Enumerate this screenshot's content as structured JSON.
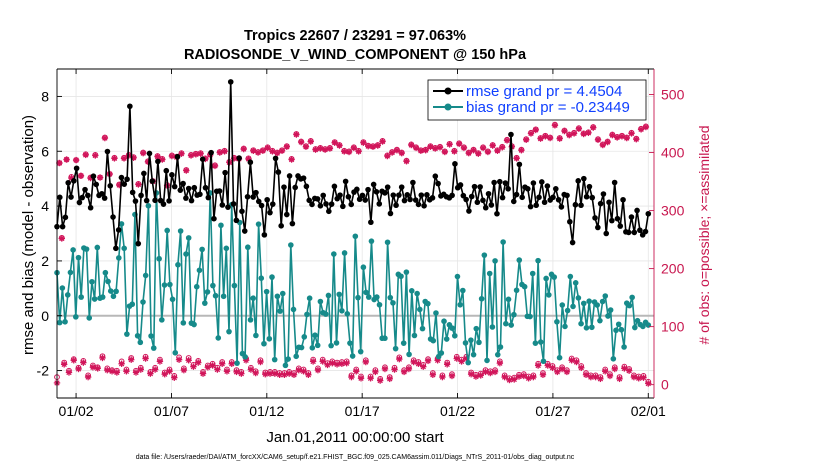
{
  "chart_data": {
    "type": "line",
    "title_line1": "Tropics 22607 / 23291 = 97.063%",
    "title_line2": "RADIOSONDE_V_WIND_COMPONENT @ 150 hPa",
    "ylabel_left": "rmse and bias (model - observation)",
    "ylabel_right": "# of obs: o=possible; ×=assimilated",
    "xlabel": "Jan.01,2011 00:00:00 start",
    "footer": "data file: /Users/raeder/DAI/ATM_forcXX/CAM6_setup/f.e21.FHIST_BGC.f09_025.CAM6assim.011/Diags_NTrS_2011-01/obs_diag_output.nc",
    "xlim": [
      0,
      31.3
    ],
    "ylim_left": [
      -3,
      9
    ],
    "ylim_right": [
      -23,
      544
    ],
    "x_ticks": [
      1,
      6,
      11,
      16,
      21,
      26,
      31
    ],
    "x_tick_labels": [
      "01/02",
      "01/07",
      "01/12",
      "01/17",
      "01/22",
      "01/27",
      "02/01"
    ],
    "y_ticks_left": [
      -2,
      0,
      2,
      4,
      6,
      8
    ],
    "y_ticks_right": [
      0,
      100,
      200,
      300,
      400,
      500
    ],
    "legend": [
      {
        "name": "rmse grand pr = 4.4504",
        "color": "#000000"
      },
      {
        "name": "bias grand pr = -0.23449",
        "color": "#168a8a"
      }
    ],
    "colors": {
      "rmse": "#000000",
      "bias": "#168a8a",
      "obs": "#d1155a",
      "zero": "#b8b8b8"
    },
    "series": [
      {
        "name": "rmse",
        "values": [
          3.25,
          4.32,
          3.25,
          3.59,
          4.85,
          4.33,
          4.92,
          5.38,
          4.13,
          4.31,
          4.6,
          4.39,
          3.94,
          5.09,
          4.79,
          4.39,
          4.45,
          4.29,
          5.99,
          4.74,
          3.6,
          2.46,
          3.13,
          5.04,
          4.8,
          4.98,
          7.64,
          4.5,
          4.18,
          2.63,
          4.39,
          5.19,
          4.2,
          5.92,
          4.91,
          4.21,
          5.63,
          4.2,
          4.07,
          5.29,
          4.19,
          5.14,
          4.71,
          5.8,
          4.58,
          4.82,
          4.29,
          4.64,
          4.2,
          4.67,
          4.4,
          4.43,
          5.71,
          4.67,
          4.31,
          5.95,
          3.54,
          4.54,
          4.55,
          4.04,
          5.22,
          3.96,
          8.53,
          4.08,
          3.48,
          5.75,
          3.81,
          3.09,
          4.34,
          5.6,
          4.33,
          4.49,
          4.17,
          4.02,
          2.95,
          4.23,
          3.76,
          4.07,
          5.74,
          5.24,
          3.28,
          4.69,
          3.69,
          5.1,
          3.36,
          4.68,
          5.1,
          4.99,
          5.02,
          4.72,
          4.21,
          4.06,
          4.28,
          4.26,
          4.01,
          4.39,
          4.08,
          3.81,
          4.07,
          4.72,
          4.27,
          4.4,
          3.99,
          4.9,
          4.34,
          4.06,
          4.51,
          4.61,
          4.25,
          4.39,
          4.22,
          4.6,
          3.41,
          4.79,
          4.52,
          4.08,
          4.54,
          4.48,
          4.69,
          3.73,
          4.4,
          4.03,
          4.4,
          4.69,
          4.2,
          4.41,
          4.24,
          4.86,
          4.22,
          4.06,
          4.4,
          4.01,
          4.41,
          4.23,
          4.3,
          5.09,
          4.82,
          4.37,
          4.43,
          4.34,
          4.3,
          4.39,
          5.54,
          4.67,
          4.77,
          4.38,
          4.24,
          3.82,
          4.35,
          4.71,
          4.14,
          4.7,
          4.21,
          3.94,
          4.45,
          4.04,
          4.86,
          3.72,
          4.89,
          4.31,
          4.84,
          4.63,
          6.61,
          4.17,
          4.42,
          5.52,
          4.32,
          4.69,
          4.63,
          3.98,
          4.84,
          4.03,
          4.32,
          4.88,
          4.14,
          4.73,
          4.22,
          4.32,
          4.63,
          4.23,
          3.97,
          4.42,
          4.39,
          3.43,
          2.67,
          4.05,
          4.92,
          4.03,
          5.0,
          4.34,
          4.71,
          4.31,
          3.57,
          3.22,
          4.09,
          4.44,
          3.0,
          4.14,
          3.47,
          4.86,
          3.54,
          3.27,
          4.23,
          3.06,
          3.04,
          3.6,
          3.04,
          3.84,
          3.12,
          2.95,
          3.07,
          3.72
        ]
      },
      {
        "name": "bias",
        "values": [
          1.57,
          -0.25,
          1.01,
          -0.22,
          0.76,
          1.58,
          2.4,
          -0.04,
          2.12,
          0.68,
          2.47,
          2.43,
          -0.08,
          1.24,
          0.61,
          2.49,
          0.64,
          0.68,
          1.57,
          1.25,
          0.9,
          0.71,
          0.89,
          2.11,
          3.35,
          2.46,
          -0.67,
          0.35,
          0.42,
          3.69,
          -0.73,
          -0.97,
          0.5,
          1.47,
          4.01,
          -0.74,
          -1.18,
          4.48,
          2.08,
          -0.15,
          1.12,
          3.11,
          1.14,
          0.6,
          -1.35,
          1.86,
          3.09,
          -0.26,
          2.25,
          2.84,
          -0.27,
          -0.32,
          1.06,
          1.66,
          2.42,
          0.46,
          0.87,
          4.48,
          1.1,
          0.73,
          -0.81,
          3.3,
          0.71,
          2.46,
          -0.58,
          4.05,
          1.1,
          -1.73,
          3.4,
          -1.38,
          -1.5,
          2.5,
          -0.15,
          0.64,
          -0.72,
          3.34,
          1.37,
          -1.02,
          0.88,
          -0.84,
          1.41,
          -1.6,
          0.71,
          0.17,
          0.81,
          -1.81,
          -1.58,
          2.58,
          0.23,
          -1.48,
          -1.15,
          -1.16,
          -0.77,
          0.05,
          0.64,
          -1.17,
          -0.71,
          -1.08,
          0.52,
          0.11,
          0.06,
          0.74,
          -1.09,
          2.25,
          -0.99,
          0.78,
          0.18,
          2.29,
          0.07,
          -1.0,
          -1.47,
          2.9,
          0.66,
          -1.31,
          1.77,
          0.85,
          0.68,
          2.72,
          0.59,
          0.68,
          0.4,
          -0.82,
          -0.82,
          2.68,
          0.66,
          0.47,
          -1.2,
          1.51,
          1.44,
          -1.0,
          1.59,
          -1.41,
          0.91,
          -0.72,
          0.81,
          0.23,
          -0.47,
          0.52,
          0.44,
          -0.85,
          -0.91,
          0.1,
          -1.49,
          -1.36,
          -0.2,
          -0.85,
          -0.33,
          -0.45,
          -0.73,
          1.43,
          0.4,
          0.92,
          -0.99,
          -1.71,
          -0.89,
          -1.42,
          -0.47,
          -0.97,
          0.62,
          2.21,
          -1.63,
          1.54,
          -0.41,
          2.0,
          -1.42,
          -1.14,
          2.69,
          -0.29,
          0.6,
          -0.34,
          0.04,
          0.93,
          2.03,
          1.14,
          1.06,
          -0.02,
          -0.03,
          1.54,
          -1.0,
          2.01,
          -0.96,
          -1.66,
          1.36,
          0.76,
          1.51,
          1.41,
          -0.22,
          -1.53,
          0.39,
          -0.39,
          0.19,
          1.43,
          0.34,
          1.2,
          0.65,
          -0.29,
          0.45,
          -0.44,
          0.53,
          -0.42,
          0.5,
          0.39,
          -0.18,
          0.52,
          0.72,
          -0.01,
          0.21,
          -1.57,
          -0.53,
          -0.31,
          -0.51,
          -1.14,
          0.46,
          0.37,
          0.67,
          -0.43,
          -0.18,
          -0.32,
          -0.39,
          -0.24,
          -0.34
        ]
      },
      {
        "name": "obs possible",
        "axis": "right",
        "values": [
          13,
          382,
          253,
          38,
          388,
          24,
          358,
          44,
          387,
          29,
          360,
          41,
          397,
          16,
          357,
          33,
          396,
          30,
          357,
          49,
          426,
          28,
          363,
          25,
          391,
          24,
          345,
          40,
          391,
          26,
          396,
          46,
          392,
          24,
          346,
          29,
          400,
          48,
          385,
          22,
          351,
          29,
          394,
          43,
          389,
          21,
          344,
          26,
          395,
          15,
          393,
          47,
          399,
          28,
          370,
          46,
          396,
          34,
          398,
          41,
          399,
          22,
          390,
          33,
          397,
          36,
          378,
          29,
          401,
          39,
          403,
          26,
          384,
          39,
          391,
          25,
          390,
          22,
          407,
          45,
          390,
          29,
          404,
          23,
          401,
          42,
          404,
          21,
          409,
          22,
          403,
          22,
          400,
          20,
          404,
          20,
          411,
          22,
          389,
          20,
          432,
          28,
          419,
          26,
          411,
          20,
          420,
          43,
          406,
          28,
          408,
          43,
          406,
          37,
          408,
          40,
          418,
          38,
          413,
          39,
          403,
          40,
          402,
          16,
          409,
          26,
          403,
          14,
          418,
          42,
          412,
          14,
          411,
          25,
          413,
          10,
          420,
          30,
          395,
          13,
          401,
          29,
          405,
          47,
          400,
          25,
          386,
          30,
          414,
          42,
          409,
          39,
          404,
          34,
          405,
          44,
          411,
          20,
          408,
          45,
          410,
          16,
          402,
          38,
          415,
          18,
          403,
          48,
          416,
          43,
          409,
          48,
          400,
          21,
          405,
          17,
          399,
          19,
          409,
          25,
          402,
          23,
          413,
          25,
          404,
          40,
          410,
          16,
          422,
          11,
          411,
          12,
          391,
          17,
          405,
          18,
          423,
          14,
          434,
          16,
          440,
          36,
          425,
          20,
          429,
          36,
          426,
          32,
          448,
          25,
          425,
          30,
          438,
          25,
          431,
          45,
          434,
          42,
          442,
          32,
          433,
          20,
          435,
          16,
          444,
          16,
          423,
          13,
          414,
          26,
          419,
          18,
          431,
          30,
          427,
          13,
          429,
          31,
          426,
          27,
          434,
          16,
          424,
          14,
          441,
          15,
          445,
          5
        ]
      },
      {
        "name": "obs assimilated",
        "axis": "right",
        "values": [
          3,
          382,
          252,
          35,
          388,
          21,
          356,
          42,
          387,
          27,
          360,
          38,
          396,
          13,
          356,
          30,
          395,
          28,
          357,
          46,
          425,
          25,
          363,
          23,
          390,
          21,
          344,
          36,
          390,
          23,
          395,
          43,
          391,
          21,
          345,
          26,
          399,
          45,
          384,
          19,
          350,
          26,
          393,
          40,
          388,
          18,
          343,
          23,
          394,
          12,
          392,
          43,
          398,
          25,
          369,
          42,
          395,
          31,
          397,
          38,
          398,
          19,
          389,
          30,
          396,
          33,
          377,
          26,
          400,
          36,
          402,
          23,
          383,
          36,
          390,
          22,
          389,
          19,
          406,
          42,
          389,
          26,
          403,
          20,
          400,
          39,
          403,
          18,
          408,
          19,
          402,
          19,
          399,
          17,
          403,
          17,
          410,
          19,
          388,
          17,
          431,
          25,
          418,
          23,
          410,
          17,
          419,
          40,
          405,
          25,
          407,
          40,
          405,
          34,
          407,
          37,
          417,
          35,
          412,
          36,
          402,
          37,
          401,
          13,
          408,
          23,
          402,
          11,
          417,
          39,
          411,
          11,
          410,
          22,
          412,
          7,
          419,
          27,
          394,
          10,
          400,
          26,
          404,
          44,
          399,
          22,
          385,
          27,
          413,
          39,
          408,
          36,
          403,
          31,
          404,
          41,
          410,
          17,
          407,
          42,
          409,
          13,
          401,
          35,
          414,
          15,
          402,
          45,
          415,
          40,
          408,
          45,
          399,
          18,
          404,
          14,
          398,
          16,
          408,
          22,
          401,
          20,
          412,
          22,
          403,
          37,
          409,
          13,
          421,
          8,
          410,
          9,
          390,
          14,
          404,
          15,
          422,
          11,
          433,
          13,
          439,
          33,
          424,
          17,
          428,
          33,
          425,
          29,
          447,
          22,
          424,
          27,
          437,
          22,
          430,
          42,
          433,
          39,
          441,
          29,
          432,
          17,
          434,
          13,
          443,
          13,
          422,
          10,
          413,
          23,
          418,
          15,
          430,
          27,
          426,
          10,
          428,
          28,
          425,
          24,
          433,
          13,
          423,
          11,
          440,
          12,
          444,
          2
        ]
      }
    ]
  }
}
